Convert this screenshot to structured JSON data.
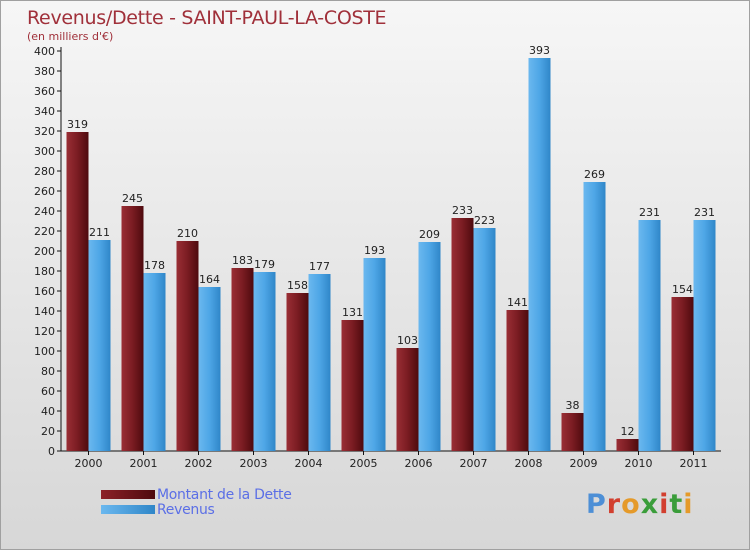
{
  "header": {
    "title": "Revenus/Dette - SAINT-PAUL-LA-COSTE",
    "subtitle": "(en milliers d'€)"
  },
  "chart_data": {
    "type": "bar",
    "title": "Revenus/Dette - SAINT-PAUL-LA-COSTE",
    "subtitle": "(en milliers d'€)",
    "categories": [
      "2000",
      "2001",
      "2002",
      "2003",
      "2004",
      "2005",
      "2006",
      "2007",
      "2008",
      "2009",
      "2010",
      "2011"
    ],
    "series": [
      {
        "name": "Montant de la Dette",
        "color": "#8c2128",
        "values": [
          319,
          245,
          210,
          183,
          158,
          131,
          103,
          233,
          141,
          38,
          12,
          154
        ]
      },
      {
        "name": "Revenus",
        "color": "#4ea6e6",
        "values": [
          211,
          178,
          164,
          179,
          177,
          193,
          209,
          223,
          393,
          269,
          231,
          231
        ]
      }
    ],
    "ylim": [
      0,
      400
    ],
    "ytick_step": 20,
    "grid": false,
    "legend_position": "bottom-left"
  },
  "legend": {
    "items": [
      {
        "label": "Montant de la Dette",
        "color": "#6b0f14"
      },
      {
        "label": "Revenus",
        "color": "#4ea6e6"
      }
    ]
  },
  "logo": {
    "letters": [
      "P",
      "r",
      "o",
      "x",
      "i",
      "t",
      "i"
    ],
    "colors": [
      "#4d8fd6",
      "#d23f2f",
      "#e59a2a",
      "#3a9d3a",
      "#d23f2f",
      "#3a9d3a",
      "#e59a2a"
    ]
  }
}
